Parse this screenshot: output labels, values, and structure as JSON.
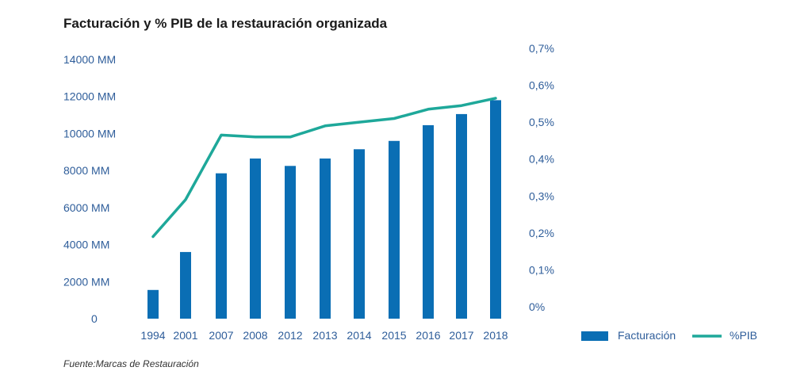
{
  "chart_data": {
    "type": "bar",
    "title": "Facturación y % PIB de la restauración organizada",
    "categories": [
      "1994",
      "2001",
      "2007",
      "2008",
      "2012",
      "2013",
      "2014",
      "2015",
      "2016",
      "2017",
      "2018"
    ],
    "series": [
      {
        "name": "Facturación",
        "type": "bar",
        "axis": "left",
        "color": "#0a6eb4",
        "values": [
          1550,
          3600,
          7850,
          8650,
          8250,
          8650,
          9150,
          9600,
          10450,
          11050,
          11800
        ]
      },
      {
        "name": "%PIB",
        "type": "line",
        "axis": "right",
        "color": "#1ea89a",
        "values": [
          0.19,
          0.29,
          0.465,
          0.46,
          0.46,
          0.49,
          0.5,
          0.51,
          0.535,
          0.545,
          0.565
        ]
      }
    ],
    "y_left": {
      "range": [
        0,
        14000
      ],
      "ticks": [
        0,
        2000,
        4000,
        6000,
        8000,
        10000,
        12000,
        14000
      ],
      "tick_labels": [
        "0",
        "2000 MM",
        "4000 MM",
        "6000 MM",
        "8000 MM",
        "10000 MM",
        "12000 MM",
        "14000 MM"
      ]
    },
    "y_right": {
      "range": [
        0,
        0.7
      ],
      "ticks": [
        0,
        0.1,
        0.2,
        0.3,
        0.4,
        0.5,
        0.6,
        0.7
      ],
      "tick_labels": [
        "0%",
        "0,1%",
        "0,2%",
        "0,3%",
        "0,4%",
        "0,5%",
        "0,6%",
        "0,7%"
      ]
    },
    "grid": false,
    "legend": {
      "placement": "bottom-right",
      "entries": [
        "Facturación",
        "%PIB"
      ]
    },
    "source": "Fuente:Marcas de Restauración"
  }
}
